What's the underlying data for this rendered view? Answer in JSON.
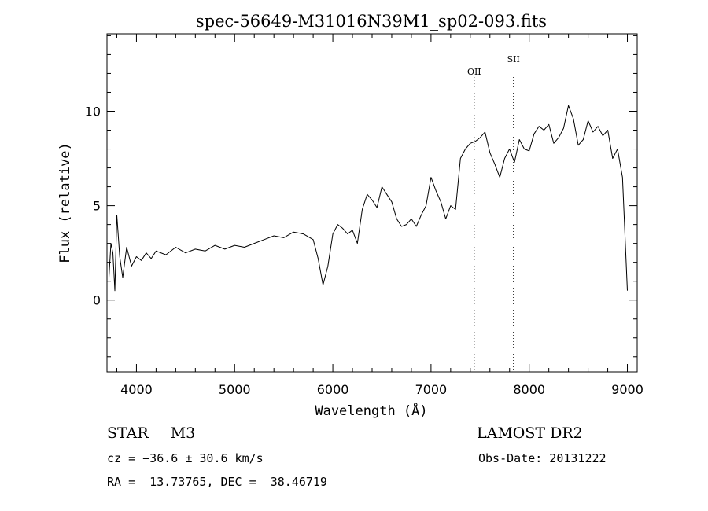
{
  "chart_data": {
    "type": "line",
    "title": "spec-56649-M31016N39M1_sp02-093.fits",
    "xlabel": "Wavelength (Å)",
    "ylabel": "Flux (relative)",
    "xlim": [
      3700,
      9100
    ],
    "ylim": [
      -3.8,
      14.1
    ],
    "xticks": [
      4000,
      5000,
      6000,
      7000,
      8000,
      9000
    ],
    "yticks": [
      0,
      5,
      10
    ],
    "grid": false,
    "series": [
      {
        "x": [
          3720,
          3740,
          3760,
          3780,
          3800,
          3830,
          3860,
          3900,
          3950,
          4000,
          4050,
          4100,
          4150,
          4200,
          4300,
          4400,
          4500,
          4600,
          4700,
          4800,
          4900,
          5000,
          5100,
          5200,
          5300,
          5400,
          5500,
          5600,
          5700,
          5800,
          5850,
          5900,
          5950,
          6000,
          6050,
          6100,
          6150,
          6200,
          6250,
          6300,
          6350,
          6400,
          6450,
          6500,
          6550,
          6600,
          6650,
          6700,
          6750,
          6800,
          6850,
          6900,
          6950,
          7000,
          7050,
          7100,
          7150,
          7200,
          7250,
          7300,
          7350,
          7400,
          7450,
          7500,
          7550,
          7600,
          7650,
          7700,
          7750,
          7800,
          7850,
          7900,
          7950,
          8000,
          8050,
          8100,
          8150,
          8200,
          8250,
          8300,
          8350,
          8400,
          8450,
          8500,
          8550,
          8600,
          8650,
          8700,
          8750,
          8800,
          8850,
          8900,
          8950,
          9000
        ],
        "values": [
          1.2,
          3.0,
          2.5,
          0.5,
          4.5,
          2.3,
          1.2,
          2.8,
          1.8,
          2.3,
          2.1,
          2.5,
          2.2,
          2.6,
          2.4,
          2.8,
          2.5,
          2.7,
          2.6,
          2.9,
          2.7,
          2.9,
          2.8,
          3.0,
          3.2,
          3.4,
          3.3,
          3.6,
          3.5,
          3.2,
          2.2,
          0.8,
          1.8,
          3.5,
          4.0,
          3.8,
          3.5,
          3.7,
          3.0,
          4.8,
          5.6,
          5.3,
          4.9,
          6.0,
          5.6,
          5.2,
          4.3,
          3.9,
          4.0,
          4.3,
          3.9,
          4.5,
          5.0,
          6.5,
          5.8,
          5.2,
          4.3,
          5.0,
          4.8,
          7.5,
          8.0,
          8.3,
          8.4,
          8.6,
          8.9,
          7.8,
          7.2,
          6.5,
          7.5,
          8.0,
          7.3,
          8.5,
          8.0,
          7.9,
          8.8,
          9.2,
          9.0,
          9.3,
          8.3,
          8.6,
          9.1,
          10.3,
          9.6,
          8.2,
          8.5,
          9.5,
          8.9,
          9.2,
          8.7,
          9.0,
          7.5,
          8.0,
          6.5,
          0.5
        ]
      }
    ],
    "annotations": [
      {
        "label": "OII",
        "x": 7440
      },
      {
        "label": "SII",
        "x": 7840
      }
    ]
  },
  "info": {
    "object_type": "STAR",
    "subclass": "M3",
    "survey": "LAMOST DR2",
    "cz": "cz = −36.6 ± 30.6 km/s",
    "obs_date": "Obs-Date: 20131222",
    "coords": "RA =  13.73765, DEC =  38.46719"
  }
}
